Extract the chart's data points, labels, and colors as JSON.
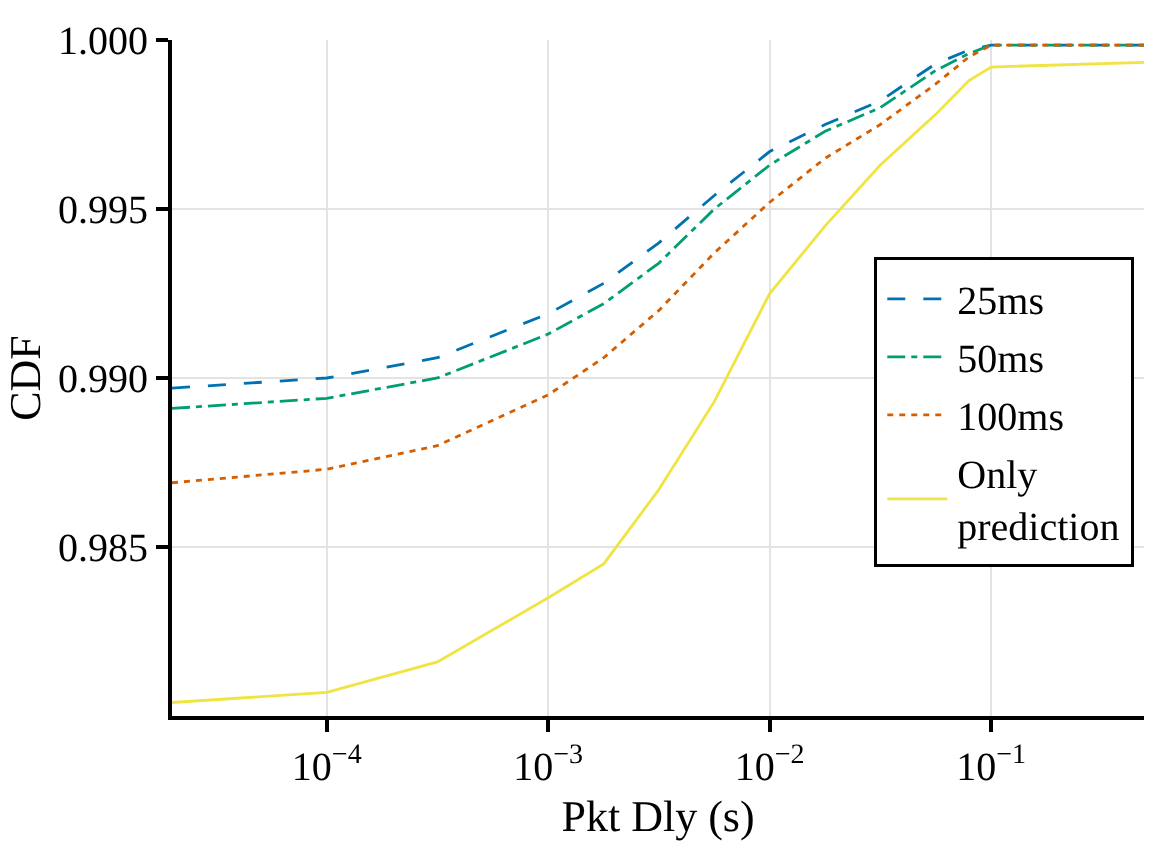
{
  "chart_data": {
    "type": "line",
    "xlabel": "Pkt Dly (s)",
    "ylabel": "CDF",
    "log": "x",
    "xlim": [
      2e-05,
      0.49
    ],
    "ylim": [
      0.98,
      1.0
    ],
    "xticks": [
      {
        "value": 0.0001,
        "label": "10$^{−4}$"
      },
      {
        "value": 0.001,
        "label": "10$^{−3}$"
      },
      {
        "value": 0.01,
        "label": "10$^{−2}$"
      },
      {
        "value": 0.1,
        "label": "10$^{−1}$"
      }
    ],
    "yticks": [
      {
        "value": 0.985,
        "label": "0.985"
      },
      {
        "value": 0.99,
        "label": "0.990"
      },
      {
        "value": 0.995,
        "label": "0.995"
      },
      {
        "value": 1.0,
        "label": "1.000"
      }
    ],
    "grid": true,
    "legend": "right",
    "marker": "none",
    "x": [
      2e-05,
      0.0001,
      0.000316,
      0.001,
      0.00178,
      0.00316,
      0.00562,
      0.01,
      0.0178,
      0.0316,
      0.0562,
      0.0794,
      0.1,
      0.49
    ],
    "series": [
      {
        "name": "25ms",
        "color": "#0072b2",
        "line_style": "dashed",
        "values": [
          0.9897,
          0.99,
          0.9906,
          0.9919,
          0.9928,
          0.994,
          0.9954,
          0.9967,
          0.9975,
          0.9982,
          0.9993,
          0.9997,
          0.99985,
          0.99985
        ]
      },
      {
        "name": "50ms",
        "color": "#009e73",
        "line_style": "dashdot",
        "values": [
          0.9891,
          0.9894,
          0.99,
          0.9913,
          0.9922,
          0.9934,
          0.995,
          0.9963,
          0.9973,
          0.998,
          0.9991,
          0.9996,
          0.99985,
          0.99985
        ]
      },
      {
        "name": "100ms",
        "color": "#d55e00",
        "line_style": "dotted",
        "values": [
          0.9869,
          0.9873,
          0.988,
          0.9895,
          0.9906,
          0.992,
          0.9937,
          0.9952,
          0.9965,
          0.9975,
          0.9987,
          0.9995,
          0.99985,
          0.99985
        ]
      },
      {
        "name": "Only prediction",
        "color": "#f0e442",
        "line_style": "solid",
        "values": [
          0.9804,
          0.9807,
          0.9816,
          0.9835,
          0.9845,
          0.9867,
          0.9893,
          0.9925,
          0.9945,
          0.9963,
          0.9978,
          0.9988,
          0.9992,
          0.99934
        ]
      }
    ]
  }
}
